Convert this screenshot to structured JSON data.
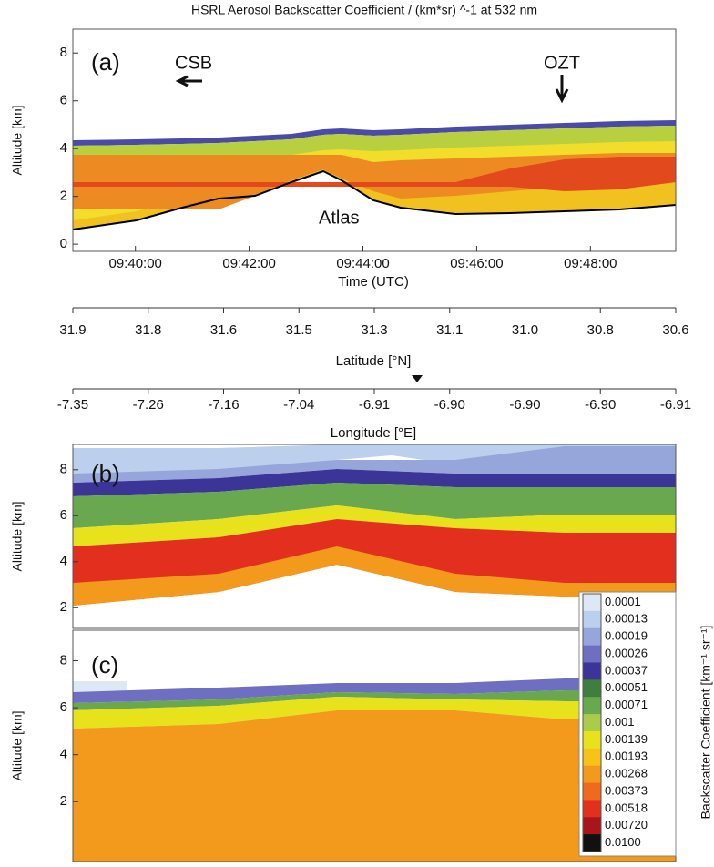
{
  "title": "HSRL Aerosol Backscatter Coefficient / (km*sr) ^-1 at 532 nm",
  "panels": [
    {
      "label": "(a)",
      "ylabel": "Altitude [km]",
      "ylim": [
        -0.3,
        9.0
      ],
      "yticks": [
        0,
        2,
        4,
        6,
        8
      ],
      "xlim": [
        578.9,
        589.5
      ],
      "xticks": [
        {
          "value": 580,
          "label": "09:40:00"
        },
        {
          "value": 582,
          "label": "09:42:00"
        },
        {
          "value": 584,
          "label": "09:44:00"
        },
        {
          "value": 586,
          "label": "09:46:00"
        },
        {
          "value": 588,
          "label": "09:48:00"
        }
      ],
      "xlabel": "Time (UTC)",
      "annotations": [
        "CSB",
        "OZT",
        "Atlas"
      ]
    },
    {
      "label": "(b)",
      "ylabel": "Altitude [km]",
      "ylim": [
        1.1,
        9.1
      ],
      "yticks": [
        2,
        4,
        6,
        8
      ]
    },
    {
      "label": "(c)",
      "ylabel": "Altitude [km]",
      "ylim": [
        -0.55,
        9.3
      ],
      "yticks": [
        2,
        4,
        6,
        8
      ]
    }
  ],
  "latitude": {
    "label": "Latitude [°N]",
    "ticks": [
      "31.9",
      "31.8",
      "31.6",
      "31.5",
      "31.3",
      "31.1",
      "31.0",
      "30.8",
      "30.6"
    ]
  },
  "longitude": {
    "label": "Longitude [°E]",
    "ticks": [
      "-7.35",
      "-7.26",
      "-7.16",
      "-7.04",
      "-6.91",
      "-6.90",
      "-6.90",
      "-6.90",
      "-6.91"
    ]
  },
  "colorbar": {
    "title": "Backscatter Coefficient [km⁻¹ sr⁻¹]",
    "labels": [
      "0.0001",
      "0.00013",
      "0.00019",
      "0.00026",
      "0.00037",
      "0.00051",
      "0.00071",
      "0.001",
      "0.00139",
      "0.00193",
      "0.00268",
      "0.00373",
      "0.00518",
      "0.00720",
      "0.0100"
    ],
    "colors": [
      "#dde8f5",
      "#bccfec",
      "#96a6da",
      "#6f6fc2",
      "#3a3596",
      "#3f7e3c",
      "#6aa84f",
      "#a9cc4a",
      "#e8e21c",
      "#f7c316",
      "#f39a1c",
      "#ef6a1d",
      "#e3301e",
      "#a8151a",
      "#111111"
    ]
  }
}
